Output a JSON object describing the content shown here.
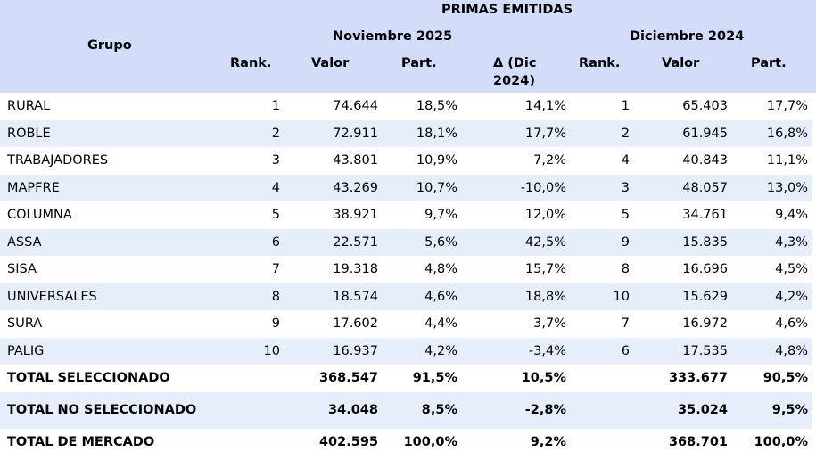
{
  "header": {
    "title": "PRIMAS EMITIDAS",
    "group_label": "Grupo",
    "period1": "Noviembre 2025",
    "period2": "Diciembre 2024",
    "rank": "Rank.",
    "valor": "Valor",
    "part": "Part.",
    "delta_line1": "Δ (Dic",
    "delta_line2": "2024)"
  },
  "rows": [
    [
      "RURAL",
      "1",
      "74.644",
      "18,5%",
      "14,1%",
      "1",
      "65.403",
      "17,7%"
    ],
    [
      "ROBLE",
      "2",
      "72.911",
      "18,1%",
      "17,7%",
      "2",
      "61.945",
      "16,8%"
    ],
    [
      "TRABAJADORES",
      "3",
      "43.801",
      "10,9%",
      "7,2%",
      "4",
      "40.843",
      "11,1%"
    ],
    [
      "MAPFRE",
      "4",
      "43.269",
      "10,7%",
      "-10,0%",
      "3",
      "48.057",
      "13,0%"
    ],
    [
      "COLUMNA",
      "5",
      "38.921",
      "9,7%",
      "12,0%",
      "5",
      "34.761",
      "9,4%"
    ],
    [
      "ASSA",
      "6",
      "22.571",
      "5,6%",
      "42,5%",
      "9",
      "15.835",
      "4,3%"
    ],
    [
      "SISA",
      "7",
      "19.318",
      "4,8%",
      "15,7%",
      "8",
      "16.696",
      "4,5%"
    ],
    [
      "UNIVERSALES",
      "8",
      "18.574",
      "4,6%",
      "18,8%",
      "10",
      "15.629",
      "4,2%"
    ],
    [
      "SURA",
      "9",
      "17.602",
      "4,4%",
      "3,7%",
      "7",
      "16.972",
      "4,6%"
    ],
    [
      "PALIG",
      "10",
      "16.937",
      "4,2%",
      "-3,4%",
      "6",
      "17.535",
      "4,8%"
    ]
  ],
  "totals": [
    [
      "TOTAL SELECCIONADO",
      "",
      "368.547",
      "91,5%",
      "10,5%",
      "",
      "333.677",
      "90,5%"
    ],
    [
      "TOTAL NO SELECCIONADO",
      "",
      "34.048",
      "8,5%",
      "-2,8%",
      "",
      "35.024",
      "9,5%"
    ],
    [
      "TOTAL DE MERCADO",
      "",
      "402.595",
      "100,0%",
      "9,2%",
      "",
      "368.701",
      "100,0%"
    ]
  ]
}
